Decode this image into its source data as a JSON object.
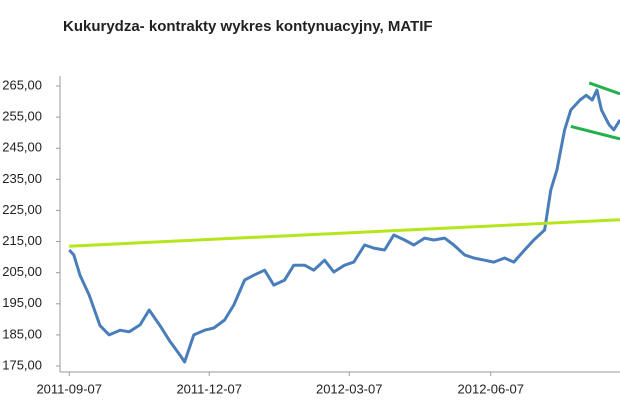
{
  "chart_data": {
    "type": "line",
    "title": "Kukurydza- kontrakty wykres kontynuacyjny, MATIF",
    "xlim": [
      "2011-09-01",
      "2012-08-30"
    ],
    "xticks": [
      "2011-09-07",
      "2011-12-07",
      "2012-03-07",
      "2012-06-07"
    ],
    "ylim": [
      175,
      265
    ],
    "yticks": [
      {
        "value": 265,
        "label": "265,00"
      },
      {
        "value": 255,
        "label": "255,00"
      },
      {
        "value": 245,
        "label": "245,00"
      },
      {
        "value": 235,
        "label": "235,00"
      },
      {
        "value": 225,
        "label": "225,00"
      },
      {
        "value": 215,
        "label": "215,00"
      },
      {
        "value": 205,
        "label": "205,00"
      },
      {
        "value": 195,
        "label": "195,00"
      },
      {
        "value": 185,
        "label": "185,00"
      },
      {
        "value": 175,
        "label": "175,00"
      }
    ],
    "grid": false,
    "series": [
      {
        "color": "#4a7ebb",
        "width": 3,
        "x": [
          "2011-09-07",
          "2011-09-10",
          "2011-09-14",
          "2011-09-20",
          "2011-09-27",
          "2011-10-03",
          "2011-10-10",
          "2011-10-16",
          "2011-10-23",
          "2011-10-29",
          "2011-11-05",
          "2011-11-11",
          "2011-11-18",
          "2011-11-21",
          "2011-11-27",
          "2011-12-04",
          "2011-12-10",
          "2011-12-17",
          "2011-12-23",
          "2011-12-30",
          "2012-01-05",
          "2012-01-12",
          "2012-01-18",
          "2012-01-25",
          "2012-01-31",
          "2012-02-07",
          "2012-02-13",
          "2012-02-20",
          "2012-02-26",
          "2012-03-04",
          "2012-03-10",
          "2012-03-17",
          "2012-03-23",
          "2012-03-30",
          "2012-04-05",
          "2012-04-12",
          "2012-04-18",
          "2012-04-25",
          "2012-05-01",
          "2012-05-08",
          "2012-05-14",
          "2012-05-21",
          "2012-05-27",
          "2012-06-03",
          "2012-06-09",
          "2012-06-16",
          "2012-06-22",
          "2012-06-29",
          "2012-07-05",
          "2012-07-12",
          "2012-07-16",
          "2012-07-20",
          "2012-07-25",
          "2012-07-29",
          "2012-08-04",
          "2012-08-08",
          "2012-08-12",
          "2012-08-15",
          "2012-08-18",
          "2012-08-23",
          "2012-08-26",
          "2012-08-30"
        ],
        "values": [
          212.3,
          210.7,
          204.2,
          197.8,
          188,
          185,
          186.5,
          186,
          188.2,
          193,
          188,
          183.3,
          178.5,
          176.3,
          185,
          186.5,
          187.2,
          189.8,
          194.6,
          202.6,
          204.2,
          205.8,
          201,
          202.6,
          207.4,
          207.4,
          205.8,
          209,
          205.2,
          207.4,
          208.4,
          213.9,
          212.9,
          212.3,
          217.1,
          215.5,
          213.9,
          216.1,
          215.5,
          216.1,
          213.9,
          210.7,
          209.7,
          209,
          208.4,
          209.7,
          208.4,
          212.3,
          215.5,
          218.7,
          231.6,
          238,
          250.9,
          257.3,
          260.5,
          262,
          260.5,
          263.7,
          257.3,
          252.5,
          250.9,
          254.1
        ]
      },
      {
        "color": "#b5e61d",
        "width": 3,
        "x": [
          "2011-09-07",
          "2012-08-30"
        ],
        "values": [
          213.5,
          222
        ]
      },
      {
        "color": "#22b14c",
        "width": 3,
        "x": [
          "2012-08-10",
          "2012-08-30"
        ],
        "values": [
          266,
          262.5
        ]
      },
      {
        "color": "#22b14c",
        "width": 3,
        "x": [
          "2012-07-29",
          "2012-08-30"
        ],
        "values": [
          252,
          248
        ]
      }
    ]
  }
}
